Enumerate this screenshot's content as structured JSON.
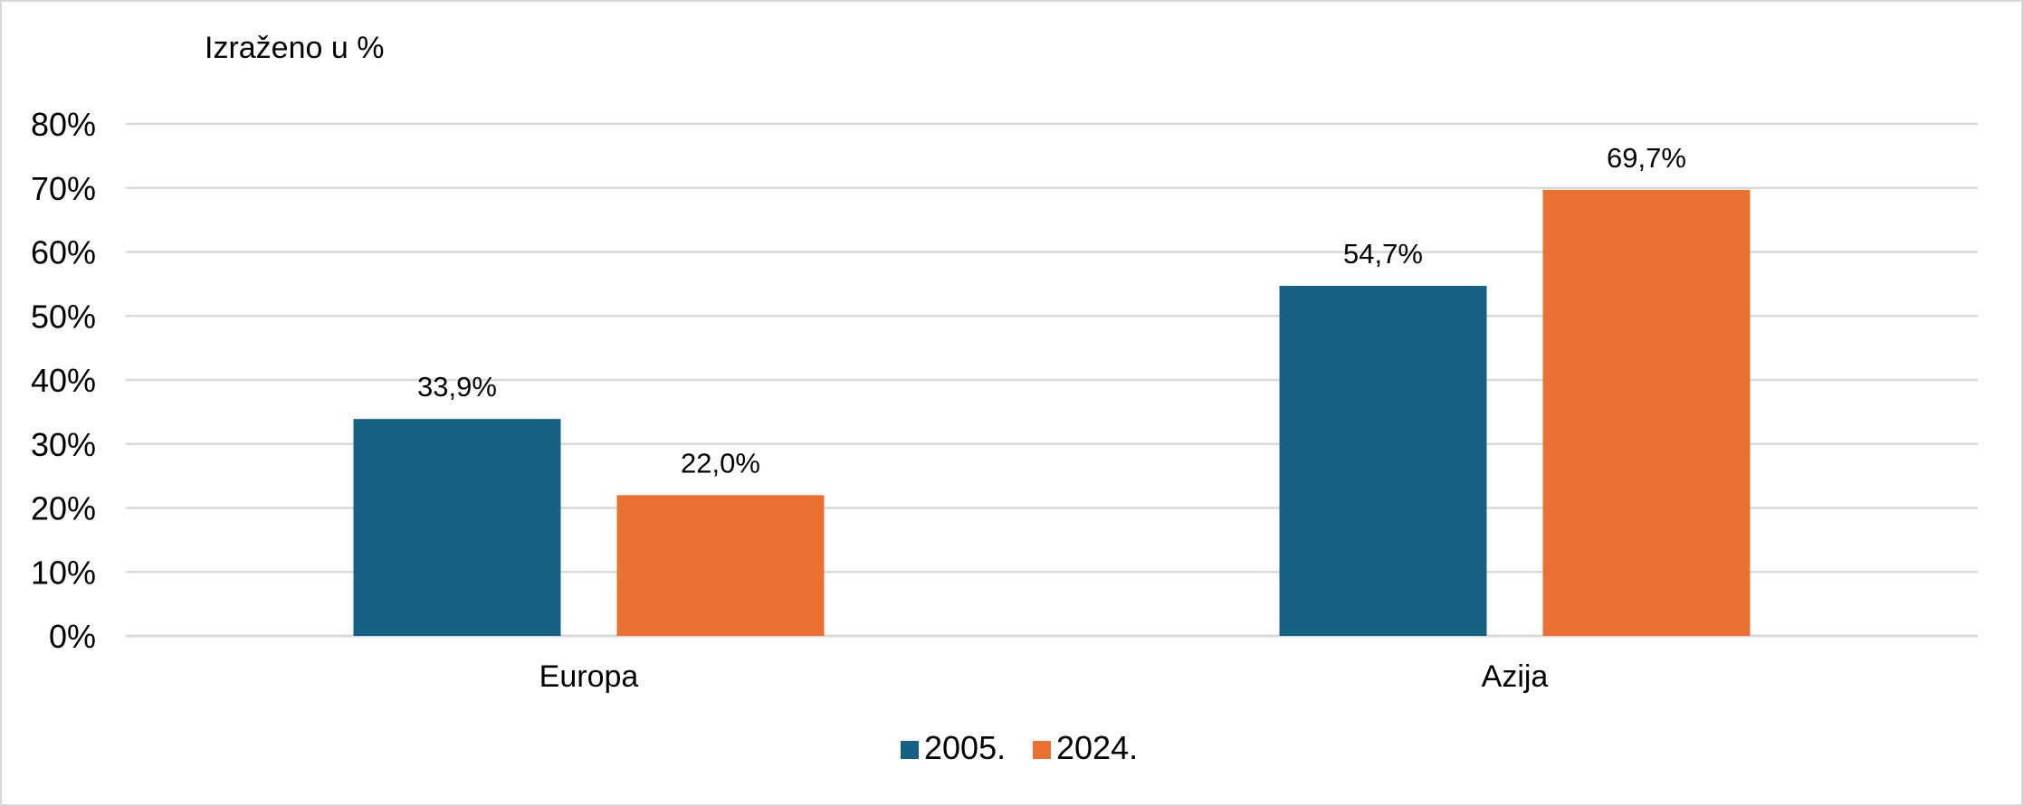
{
  "chart_data": {
    "type": "bar",
    "unit_label": "Izraženo u %",
    "categories": [
      "Europa",
      "Azija"
    ],
    "series": [
      {
        "name": "2005.",
        "color": "#176185",
        "values": [
          33.9,
          54.7
        ],
        "labels": [
          "33,9%",
          "54,7%"
        ]
      },
      {
        "name": "2024.",
        "color": "#e97233",
        "values": [
          22.0,
          69.7
        ],
        "labels": [
          "22,0%",
          "69,7%"
        ]
      }
    ],
    "ylim": [
      0,
      80
    ],
    "yticks": [
      0,
      10,
      20,
      30,
      40,
      50,
      60,
      70,
      80
    ],
    "ytick_labels": [
      "0%",
      "10%",
      "20%",
      "30%",
      "40%",
      "50%",
      "60%",
      "70%",
      "80%"
    ],
    "grid": true,
    "legend": "bottom-center"
  }
}
